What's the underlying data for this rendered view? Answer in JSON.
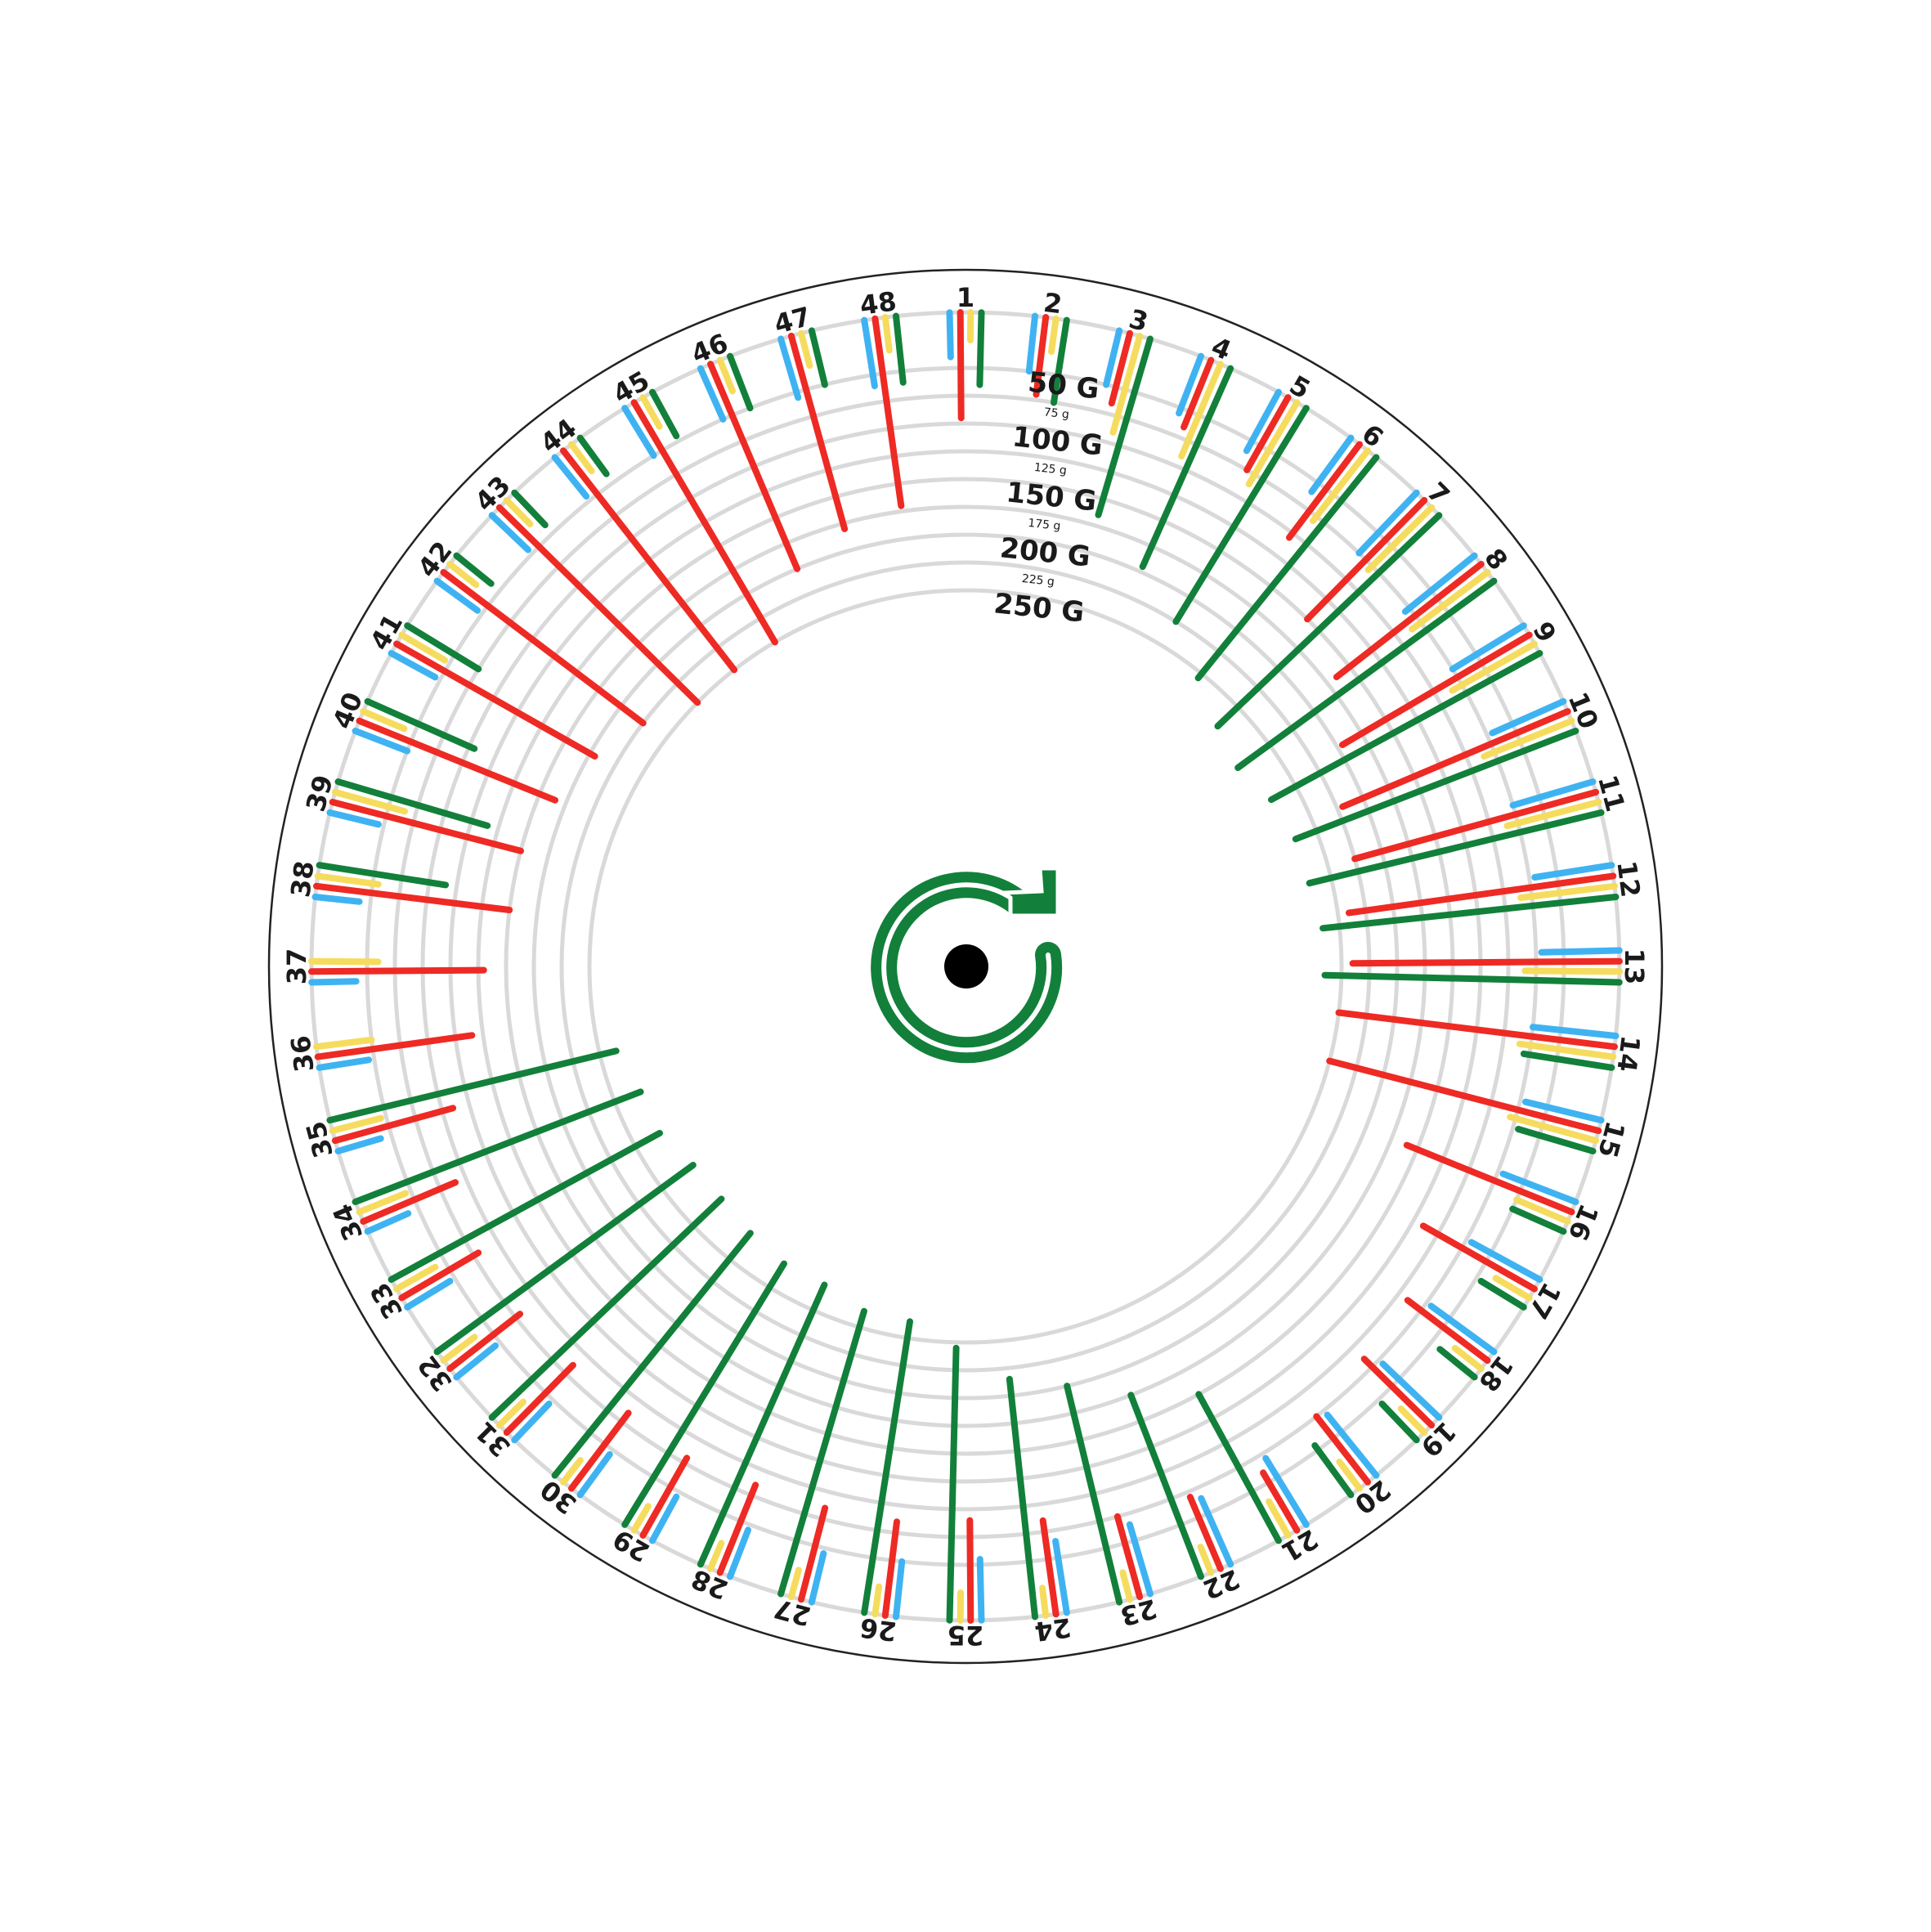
{
  "chart_data": {
    "type": "radial-bar",
    "center_icon": "rotate-clockwise-icon",
    "radial_axis": {
      "major_labels": [
        {
          "text": "50 G",
          "value": 50
        },
        {
          "text": "100 G",
          "value": 100
        },
        {
          "text": "150 G",
          "value": 150
        },
        {
          "text": "200 G",
          "value": 200
        },
        {
          "text": "250 G",
          "value": 250
        }
      ],
      "minor_labels": [
        {
          "text": "75 g",
          "value": 75
        },
        {
          "text": "125 g",
          "value": 125
        },
        {
          "text": "175 g",
          "value": 175
        },
        {
          "text": "225 g",
          "value": 225
        }
      ],
      "range": [
        0,
        300
      ],
      "grid": true
    },
    "slot_labels": [
      "1",
      "2",
      "3",
      "4",
      "5",
      "6",
      "7",
      "8",
      "9",
      "10",
      "11",
      "12",
      "13",
      "14",
      "15",
      "16",
      "17",
      "18",
      "19",
      "20",
      "21",
      "22",
      "23",
      "24",
      "25",
      "26",
      "27",
      "28",
      "29",
      "30",
      "31",
      "32",
      "33",
      "34",
      "35",
      "36",
      "37",
      "38",
      "39",
      "40",
      "41",
      "42",
      "43",
      "44",
      "45",
      "46",
      "47",
      "48"
    ],
    "empty_slots": [
      "48"
    ],
    "colors": {
      "blue": "#3fb3f2",
      "red": "#ee2a24",
      "yellow": "#f6dc5e",
      "green": "#12803a",
      "grid": "#d9d9d9"
    },
    "series": [
      {
        "color": "blue",
        "values": [
          40,
          50,
          50,
          55,
          60,
          60,
          75,
          80,
          75,
          70,
          75,
          70,
          70,
          75,
          70,
          70,
          70,
          70,
          70,
          70,
          70,
          65,
          65,
          65,
          55,
          50,
          45,
          45,
          45,
          45,
          45,
          45,
          45,
          40,
          40,
          45,
          40,
          40,
          45,
          50,
          45,
          45,
          45,
          45,
          50,
          50,
          55,
          60
        ]
      },
      {
        "color": "red",
        "values": [
          95,
          70,
          65,
          65,
          75,
          105,
          150,
          165,
          195,
          220,
          225,
          240,
          240,
          250,
          250,
          160,
          115,
          90,
          85,
          75,
          60,
          70,
          75,
          85,
          90,
          85,
          85,
          85,
          80,
          85,
          85,
          80,
          80,
          90,
          110,
          140,
          155,
          175,
          175,
          190,
          205,
          225,
          250,
          250,
          250,
          200,
          180,
          170
        ]
      },
      {
        "color": "yellow",
        "values": [
          25,
          30,
          90,
          90,
          85,
          80,
          80,
          85,
          85,
          85,
          85,
          85,
          85,
          85,
          80,
          50,
          35,
          30,
          30,
          30,
          35,
          25,
          25,
          25,
          25,
          25,
          25,
          25,
          25,
          25,
          30,
          35,
          40,
          45,
          45,
          50,
          60,
          55,
          65,
          40,
          45,
          30,
          30,
          30,
          30,
          30,
          30,
          30
        ]
      },
      {
        "color": "green",
        "values": [
          65,
          75,
          165,
          195,
          225,
          255,
          275,
          285,
          275,
          270,
          270,
          265,
          265,
          80,
          70,
          50,
          45,
          40,
          45,
          55,
          150,
          175,
          200,
          215,
          245,
          265,
          265,
          275,
          275,
          280,
          285,
          285,
          275,
          275,
          265,
          0,
          0,
          115,
          140,
          105,
          75,
          40,
          40,
          40,
          45,
          50,
          50,
          60
        ]
      }
    ]
  }
}
